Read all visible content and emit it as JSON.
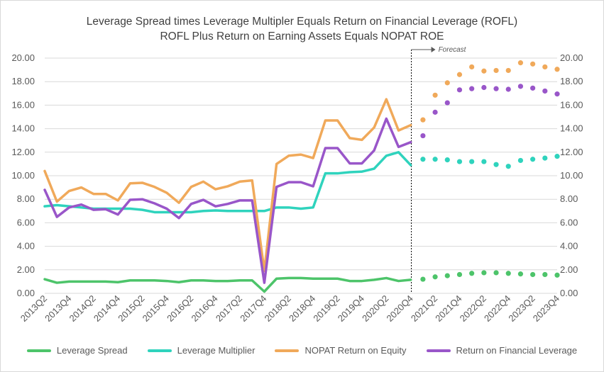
{
  "chart_data": {
    "type": "line",
    "title": "Leverage Spread times Leverage Multipler Equals Return on Financial Leverage (ROFL)",
    "subtitle": "ROFL Plus Return on Earning Assets Equals NOPAT ROE",
    "annotation": "Forecast",
    "ylim": [
      0,
      20
    ],
    "yticks": [
      "0.00",
      "2.00",
      "4.00",
      "6.00",
      "8.00",
      "10.00",
      "12.00",
      "14.00",
      "16.00",
      "18.00",
      "20.00"
    ],
    "categories": [
      "2013Q2",
      "2013Q3",
      "2013Q4",
      "2014Q1",
      "2014Q2",
      "2014Q3",
      "2014Q4",
      "2015Q1",
      "2015Q2",
      "2015Q3",
      "2015Q4",
      "2016Q1",
      "2016Q2",
      "2016Q3",
      "2016Q4",
      "2017Q1",
      "2017Q2",
      "2017Q3",
      "2017Q4",
      "2018Q1",
      "2018Q2",
      "2018Q3",
      "2018Q4",
      "2019Q1",
      "2019Q2",
      "2019Q3",
      "2019Q4",
      "2020Q1",
      "2020Q2",
      "2020Q3",
      "2020Q4",
      "2021Q1",
      "2021Q2",
      "2021Q3",
      "2021Q4",
      "2022Q1",
      "2022Q2",
      "2022Q3",
      "2022Q4",
      "2023Q1",
      "2023Q2",
      "2023Q3",
      "2023Q4"
    ],
    "tick_labels": [
      "2013Q2",
      "2013Q4",
      "2014Q2",
      "2014Q4",
      "2015Q2",
      "2015Q4",
      "2016Q2",
      "2016Q4",
      "2017Q2",
      "2017Q4",
      "2018Q2",
      "2018Q4",
      "2019Q2",
      "2019Q4",
      "2020Q2",
      "2020Q4",
      "2021Q2",
      "2021Q4",
      "2022Q2",
      "2022Q4",
      "2023Q2",
      "2023Q4"
    ],
    "actual_count": 31,
    "legend_position": "bottom",
    "series": [
      {
        "name": "Leverage Spread",
        "color": "#4dc46a",
        "values": [
          1.2,
          0.9,
          1.0,
          1.0,
          1.0,
          1.0,
          0.95,
          1.1,
          1.1,
          1.1,
          1.05,
          0.95,
          1.1,
          1.1,
          1.05,
          1.05,
          1.1,
          1.1,
          0.15,
          1.25,
          1.3,
          1.3,
          1.25,
          1.25,
          1.25,
          1.05,
          1.05,
          1.15,
          1.3,
          1.05,
          1.15,
          1.2,
          1.4,
          1.5,
          1.6,
          1.7,
          1.75,
          1.75,
          1.7,
          1.65,
          1.6,
          1.6,
          1.55
        ]
      },
      {
        "name": "Leverage Multiplier",
        "color": "#2fd3bd",
        "values": [
          7.4,
          7.5,
          7.4,
          7.3,
          7.2,
          7.2,
          7.2,
          7.2,
          7.1,
          6.9,
          6.9,
          6.9,
          6.9,
          7.0,
          7.05,
          7.0,
          7.0,
          7.0,
          7.0,
          7.3,
          7.3,
          7.2,
          7.3,
          10.2,
          10.2,
          10.3,
          10.35,
          10.6,
          11.7,
          12.0,
          10.9,
          11.4,
          11.4,
          11.35,
          11.2,
          11.2,
          11.2,
          10.95,
          10.8,
          11.3,
          11.4,
          11.5,
          11.65
        ]
      },
      {
        "name": "NOPAT Return on Equity",
        "color": "#f0a95a",
        "values": [
          10.4,
          7.8,
          8.7,
          9.0,
          8.45,
          8.45,
          7.9,
          9.35,
          9.4,
          9.05,
          8.55,
          7.7,
          9.05,
          9.5,
          8.85,
          9.1,
          9.5,
          9.6,
          1.9,
          11.0,
          11.7,
          11.8,
          11.5,
          14.7,
          14.7,
          13.2,
          13.05,
          14.1,
          16.5,
          13.85,
          14.3,
          14.75,
          16.85,
          17.9,
          18.6,
          19.25,
          18.9,
          18.95,
          18.95,
          19.6,
          19.5,
          19.25,
          19.05
        ]
      },
      {
        "name": "Return on Financial Leverage",
        "color": "#9956c9",
        "values": [
          8.8,
          6.5,
          7.3,
          7.55,
          7.1,
          7.15,
          6.7,
          7.95,
          8.0,
          7.65,
          7.2,
          6.4,
          7.6,
          7.95,
          7.4,
          7.6,
          7.9,
          7.9,
          0.9,
          9.05,
          9.45,
          9.45,
          9.1,
          12.35,
          12.35,
          11.05,
          11.05,
          12.15,
          14.85,
          12.45,
          12.85,
          13.4,
          15.4,
          16.2,
          17.3,
          17.4,
          17.5,
          17.4,
          17.35,
          17.6,
          17.45,
          17.2,
          16.95
        ]
      }
    ]
  }
}
